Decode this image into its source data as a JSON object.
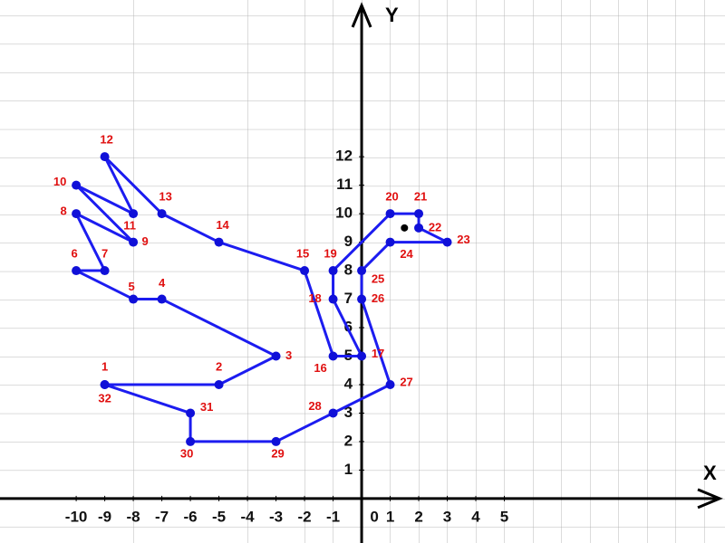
{
  "chart_data": {
    "type": "line",
    "x_label": "X",
    "y_label": "Y",
    "x": [
      -9,
      -5,
      -3,
      -7,
      -8,
      -10,
      -9,
      -10,
      -8,
      -10,
      -8,
      -9,
      -7,
      -5,
      -2,
      -1,
      0,
      -1,
      -1,
      1,
      2,
      2,
      3,
      1,
      0,
      0,
      1,
      -1,
      -3,
      -6,
      -6,
      -9
    ],
    "series": [
      {
        "color": "#1c1cf0",
        "values": [
          4,
          4,
          5,
          7,
          7,
          8,
          8,
          10,
          9,
          11,
          10,
          12,
          10,
          9,
          8,
          5,
          5,
          7,
          8,
          10,
          10,
          9.5,
          9,
          9,
          8,
          7,
          4,
          3,
          2,
          2,
          3,
          4
        ],
        "point_labels": [
          1,
          2,
          3,
          4,
          5,
          6,
          7,
          8,
          9,
          10,
          11,
          12,
          13,
          14,
          15,
          16,
          17,
          18,
          19,
          20,
          21,
          22,
          23,
          24,
          25,
          26,
          27,
          28,
          29,
          30,
          31,
          32
        ]
      }
    ],
    "eye": {
      "x": 1.5,
      "y": 9.5
    },
    "xlim": [
      -12.67,
      12.73
    ],
    "ylim": [
      -1.56,
      17.5
    ],
    "xticks": [
      -10,
      -9,
      -8,
      -7,
      -6,
      -5,
      -4,
      -3,
      -2,
      -1,
      0,
      1,
      2,
      3,
      4,
      5
    ],
    "yticks": [
      1,
      2,
      3,
      4,
      5,
      6,
      7,
      8,
      9,
      10,
      11,
      12
    ],
    "grid": true
  }
}
